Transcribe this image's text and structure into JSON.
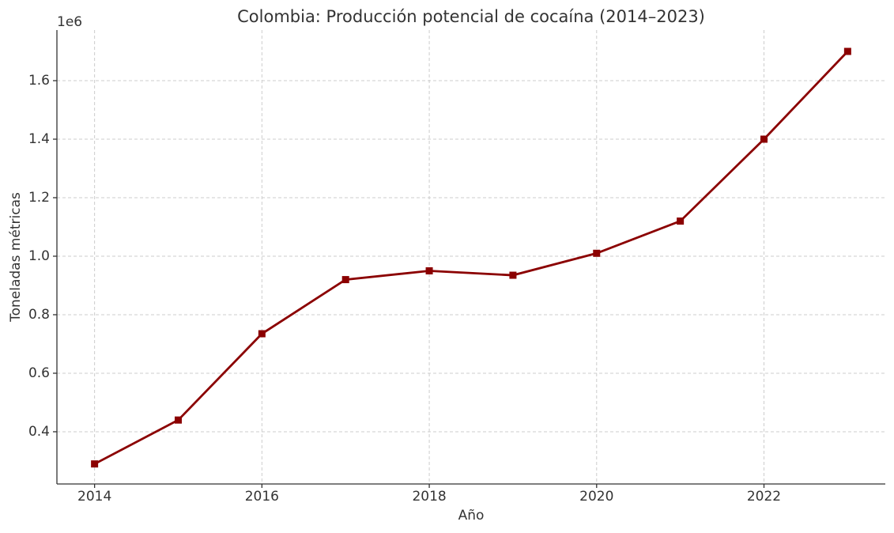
{
  "chart_data": {
    "type": "line",
    "title": "Colombia: Producción potencial de cocaína (2014–2023)",
    "x_label": "Año",
    "y_label": "Toneladas métricas",
    "y_offset_label": "1e6",
    "x": [
      2014,
      2015,
      2016,
      2017,
      2018,
      2019,
      2020,
      2021,
      2022,
      2023
    ],
    "series": [
      {
        "name": "Producción potencial",
        "color": "#8b0000",
        "values": [
          290000,
          440000,
          735000,
          920000,
          950000,
          935000,
          1010000,
          1120000,
          1400000,
          1700000
        ]
      }
    ],
    "xlim": [
      2013.55,
      2023.45
    ],
    "xticks": [
      2014,
      2016,
      2018,
      2020,
      2022
    ],
    "ylim": [
      221500,
      1773000
    ],
    "yticks": [
      {
        "value": 400000,
        "label": "0.4"
      },
      {
        "value": 600000,
        "label": "0.6"
      },
      {
        "value": 800000,
        "label": "0.8"
      },
      {
        "value": 1000000,
        "label": "1.0"
      },
      {
        "value": 1200000,
        "label": "1.2"
      },
      {
        "value": 1400000,
        "label": "1.4"
      },
      {
        "value": 1600000,
        "label": "1.6"
      }
    ],
    "grid": true,
    "marker": "square"
  }
}
